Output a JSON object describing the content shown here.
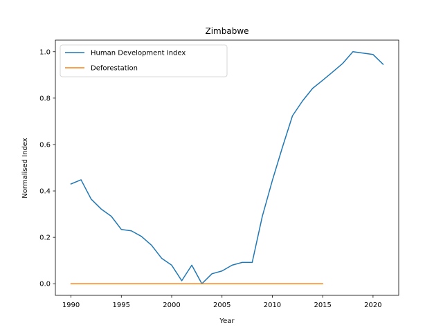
{
  "chart_data": {
    "type": "line",
    "title": "Zimbabwe",
    "xlabel": "Year",
    "ylabel": "Normalised Index",
    "xlim": [
      1988.45,
      2022.55
    ],
    "ylim": [
      -0.05,
      1.05
    ],
    "xticks": [
      1990,
      1995,
      2000,
      2005,
      2010,
      2015,
      2020
    ],
    "yticks": [
      0.0,
      0.2,
      0.4,
      0.6,
      0.8,
      1.0
    ],
    "ytick_labels": [
      "0.0",
      "0.2",
      "0.4",
      "0.6",
      "0.8",
      "1.0"
    ],
    "grid": false,
    "legend_position": "upper-left",
    "series": [
      {
        "name": "Human Development Index",
        "color": "#1f77b4",
        "x": [
          1990,
          1991,
          1992,
          1993,
          1994,
          1995,
          1996,
          1997,
          1998,
          1999,
          2000,
          2001,
          2002,
          2003,
          2004,
          2005,
          2006,
          2007,
          2008,
          2009,
          2010,
          2011,
          2012,
          2013,
          2014,
          2015,
          2016,
          2017,
          2018,
          2019,
          2020,
          2021
        ],
        "y": [
          0.43,
          0.448,
          0.365,
          0.322,
          0.291,
          0.234,
          0.228,
          0.204,
          0.166,
          0.11,
          0.08,
          0.013,
          0.08,
          0.0,
          0.043,
          0.055,
          0.08,
          0.092,
          0.092,
          0.29,
          0.445,
          0.588,
          0.724,
          0.788,
          0.842,
          0.877,
          0.913,
          0.95,
          1.0,
          0.994,
          0.988,
          0.946
        ]
      },
      {
        "name": "Deforestation",
        "color": "#ff7f0e",
        "x": [
          1990,
          1991,
          1992,
          1993,
          1994,
          1995,
          1996,
          1997,
          1998,
          1999,
          2000,
          2001,
          2002,
          2003,
          2004,
          2005,
          2006,
          2007,
          2008,
          2009,
          2010,
          2011,
          2012,
          2013,
          2014,
          2015
        ],
        "y": [
          0,
          0,
          0,
          0,
          0,
          0,
          0,
          0,
          0,
          0,
          0,
          0,
          0,
          0,
          0,
          0,
          0,
          0,
          0,
          0,
          0,
          0,
          0,
          0,
          0,
          0
        ]
      }
    ]
  }
}
